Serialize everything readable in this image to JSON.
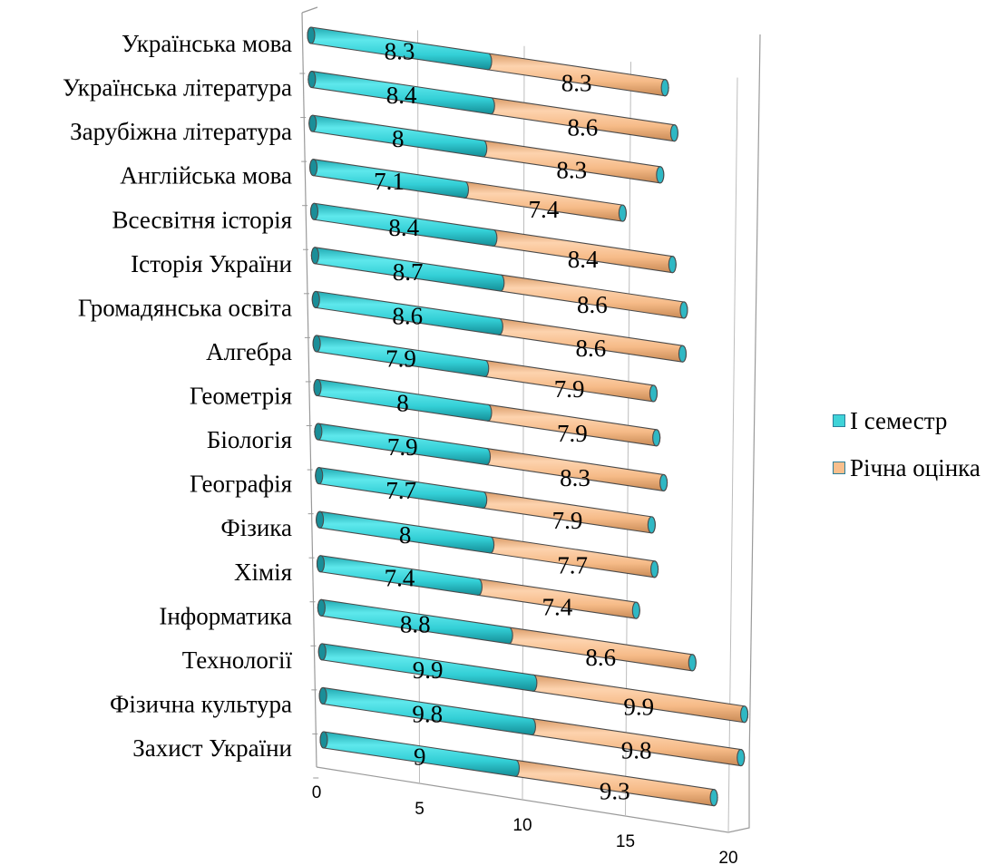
{
  "chart_data": {
    "type": "bar",
    "orientation": "horizontal",
    "stacked": true,
    "style": "3d-cylinder",
    "categories": [
      "Українська мова",
      "Українська література",
      "Зарубіжна література",
      "Англійська мова",
      "Всесвітня історія",
      "Історія України",
      "Громадянська освіта",
      "Алгебра",
      "Геометрія",
      "Біологія",
      "Географія",
      "Фізика",
      "Хімія",
      "Інформатика",
      "Технології",
      "Фізична культура",
      "Захист України"
    ],
    "series": [
      {
        "name": "І семестр",
        "color": "#3fd3d8",
        "values": [
          8.3,
          8.4,
          8,
          7.1,
          8.4,
          8.7,
          8.6,
          7.9,
          8,
          7.9,
          7.7,
          8,
          7.4,
          8.8,
          9.9,
          9.8,
          9
        ]
      },
      {
        "name": "Річна оцінка",
        "color": "#f8bf8d",
        "values": [
          8.3,
          8.6,
          8.3,
          7.4,
          8.4,
          8.6,
          8.6,
          7.9,
          7.9,
          8.3,
          7.9,
          7.7,
          7.4,
          8.6,
          9.9,
          9.8,
          9.3
        ]
      }
    ],
    "value_labels": [
      [
        "8.3",
        "8.3"
      ],
      [
        "8.4",
        "8.6"
      ],
      [
        "8",
        "8.3"
      ],
      [
        "7.1",
        "7.4"
      ],
      [
        "8.4",
        "8.4"
      ],
      [
        "8.7",
        "8.6"
      ],
      [
        "8.6",
        "8.6"
      ],
      [
        "7.9",
        "7.9"
      ],
      [
        "8",
        "7.9"
      ],
      [
        "7.9",
        "8.3"
      ],
      [
        "7.7",
        "7.9"
      ],
      [
        "8",
        "7.7"
      ],
      [
        "7.4",
        "7.4"
      ],
      [
        "8.8",
        "8.6"
      ],
      [
        "9.9",
        "9.9"
      ],
      [
        "9.8",
        "9.8"
      ],
      [
        "9",
        "9.3"
      ]
    ],
    "xticks": [
      0,
      5,
      10,
      15,
      20
    ],
    "xlim": [
      0,
      20
    ],
    "grid": true,
    "legend_position": "right",
    "title": "",
    "xlabel": "",
    "ylabel": ""
  }
}
